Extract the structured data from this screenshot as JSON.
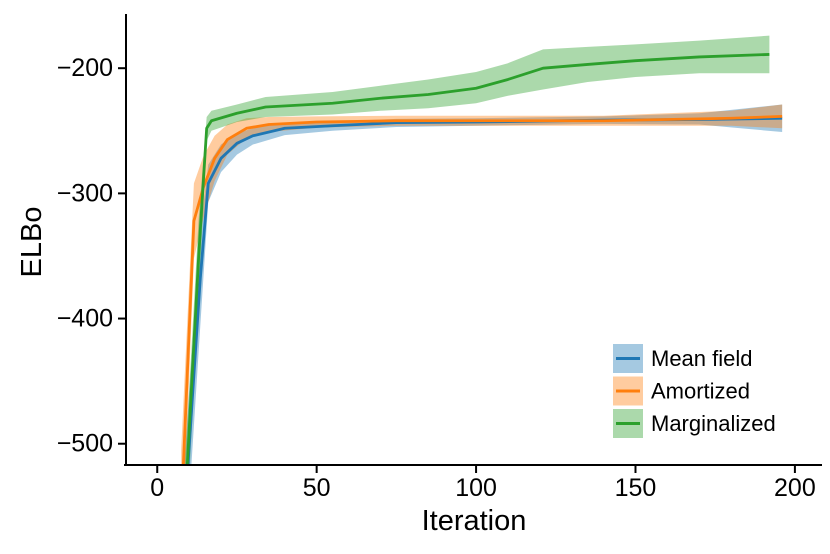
{
  "chart_data": {
    "type": "line",
    "title": "",
    "xlabel": "Iteration",
    "ylabel": "ELBo",
    "xlim": [
      -9.8,
      208.5
    ],
    "ylim": [
      -517,
      -157.5
    ],
    "grid": false,
    "legend_position": "lower right",
    "band_opacity": 0.4,
    "x_ticks": {
      "values": [
        0,
        50,
        100,
        150,
        200
      ],
      "labels": [
        "0",
        "50",
        "100",
        "150",
        "200"
      ]
    },
    "y_ticks": {
      "values": [
        -200,
        -300,
        -400,
        -500
      ],
      "labels": [
        "−200",
        "−300",
        "−400",
        "−500"
      ]
    },
    "series": [
      {
        "name": "Mean field",
        "color": "#1f77b4",
        "x": [
          8.5,
          13.5,
          16,
          20,
          25,
          30,
          40,
          55,
          75,
          100,
          140,
          170,
          196
        ],
        "y": [
          -560,
          -368,
          -292,
          -272,
          -260,
          -254,
          -248,
          -246,
          -243.5,
          -243,
          -241.5,
          -241,
          -240
        ],
        "band_lo": [
          -605,
          -406,
          -307,
          -283,
          -269,
          -261,
          -253.5,
          -250,
          -247,
          -246,
          -244.5,
          -245,
          -251
        ],
        "band_hi": [
          -515,
          -330,
          -277,
          -261,
          -252,
          -248,
          -243.5,
          -242.5,
          -240.5,
          -240,
          -238.5,
          -236,
          -229
        ]
      },
      {
        "name": "Amortized",
        "color": "#ff7f0e",
        "x": [
          7.5,
          11.5,
          14.5,
          18,
          22,
          28,
          35,
          50,
          75,
          100,
          140,
          180,
          196
        ],
        "y": [
          -558,
          -322,
          -295,
          -272,
          -257,
          -248,
          -245,
          -243,
          -242,
          -242,
          -242,
          -240,
          -238.5
        ],
        "band_lo": [
          -610,
          -352,
          -320,
          -290,
          -269,
          -256,
          -251,
          -247.5,
          -246,
          -246,
          -246,
          -246,
          -248
        ],
        "band_hi": [
          -505,
          -292,
          -270,
          -254,
          -245,
          -240,
          -239,
          -238.5,
          -238,
          -238,
          -238,
          -234,
          -229
        ]
      },
      {
        "name": "Marginalized",
        "color": "#2ca02c",
        "x": [
          8.5,
          13,
          15.5,
          17,
          25,
          34,
          55,
          70,
          85,
          100,
          110,
          121,
          135,
          150,
          170,
          192
        ],
        "y": [
          -560,
          -350,
          -248,
          -242,
          -236,
          -231,
          -228,
          -224,
          -221,
          -216,
          -209,
          -200,
          -197,
          -194,
          -191,
          -189
        ],
        "band_lo": [
          -600,
          -385,
          -258,
          -250,
          -243,
          -239,
          -237,
          -234,
          -232,
          -228,
          -222,
          -217,
          -211,
          -207,
          -204,
          -204
        ],
        "band_hi": [
          -525,
          -320,
          -239,
          -234,
          -229,
          -223,
          -219,
          -214,
          -209,
          -203,
          -196,
          -185,
          -183,
          -181,
          -178,
          -174
        ]
      }
    ]
  }
}
